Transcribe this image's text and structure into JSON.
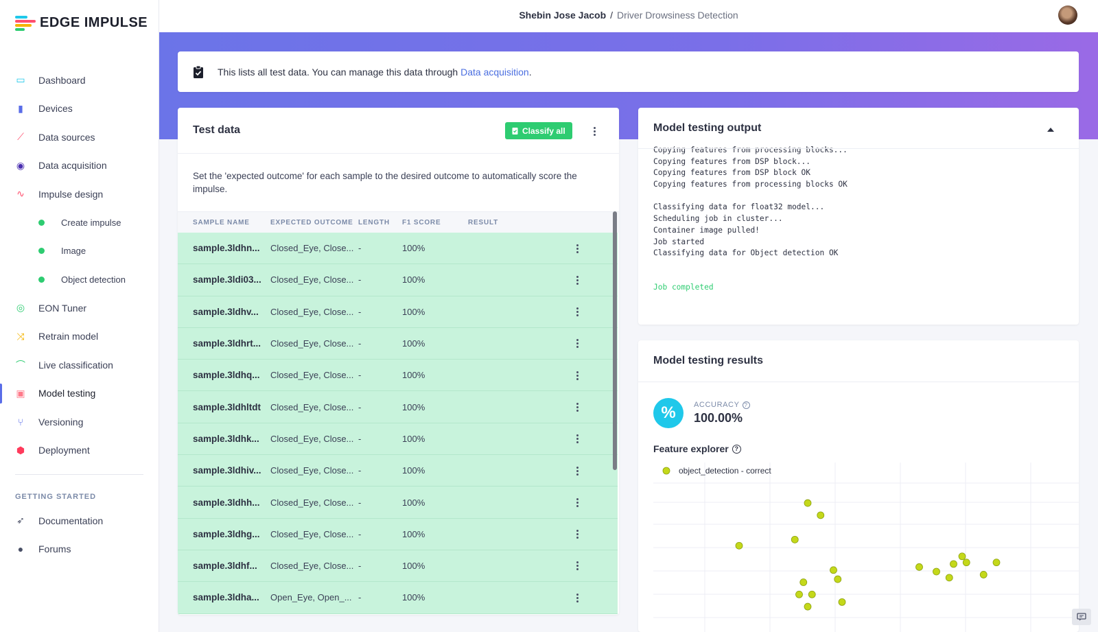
{
  "app": {
    "logo_text": "EDGE IMPULSE"
  },
  "breadcrumb": {
    "user": "Shebin Jose Jacob",
    "separator": "/",
    "project": "Driver Drowsiness Detection"
  },
  "sidebar": {
    "items": [
      {
        "label": "Dashboard",
        "icon": "monitor-icon",
        "color": "#1fc8ea"
      },
      {
        "label": "Devices",
        "icon": "chip-icon",
        "color": "#5a6de8"
      },
      {
        "label": "Data sources",
        "icon": "wand-icon",
        "color": "#ff4f6e"
      },
      {
        "label": "Data acquisition",
        "icon": "database-icon",
        "color": "#4a2fb0"
      },
      {
        "label": "Impulse design",
        "icon": "pulse-icon",
        "color": "#ff4f6e"
      },
      {
        "label": "Create impulse",
        "sub": true
      },
      {
        "label": "Image",
        "sub": true
      },
      {
        "label": "Object detection",
        "sub": true
      },
      {
        "label": "EON Tuner",
        "icon": "compass-icon",
        "color": "#2ecc71"
      },
      {
        "label": "Retrain model",
        "icon": "shuffle-icon",
        "color": "#f5b400"
      },
      {
        "label": "Live classification",
        "icon": "curve-icon",
        "color": "#2ecc71"
      },
      {
        "label": "Model testing",
        "icon": "clipboard-icon",
        "color": "#ff7a8a",
        "active": true
      },
      {
        "label": "Versioning",
        "icon": "branch-icon",
        "color": "#5a6de8"
      },
      {
        "label": "Deployment",
        "icon": "box-icon",
        "color": "#ff3b5c"
      }
    ],
    "section_label": "GETTING STARTED",
    "section_items": [
      {
        "label": "Documentation",
        "icon": "rocket-icon"
      },
      {
        "label": "Forums",
        "icon": "chat-icon"
      }
    ]
  },
  "info": {
    "text": "This lists all test data. You can manage this data through ",
    "link": "Data acquisition",
    "suffix": "."
  },
  "test_data": {
    "title": "Test data",
    "classify_label": "Classify all",
    "description": "Set the 'expected outcome' for each sample to the desired outcome to automatically score the impulse.",
    "columns": [
      "SAMPLE NAME",
      "EXPECTED OUTCOME",
      "LENGTH",
      "F1 SCORE",
      "RESULT"
    ],
    "rows": [
      [
        "sample.3ldhn...",
        "Closed_Eye, Close...",
        "-",
        "100%",
        ""
      ],
      [
        "sample.3ldi03...",
        "Closed_Eye, Close...",
        "-",
        "100%",
        ""
      ],
      [
        "sample.3ldhv...",
        "Closed_Eye, Close...",
        "-",
        "100%",
        ""
      ],
      [
        "sample.3ldhrt...",
        "Closed_Eye, Close...",
        "-",
        "100%",
        ""
      ],
      [
        "sample.3ldhq...",
        "Closed_Eye, Close...",
        "-",
        "100%",
        ""
      ],
      [
        "sample.3ldhltdt",
        "Closed_Eye, Close...",
        "-",
        "100%",
        ""
      ],
      [
        "sample.3ldhk...",
        "Closed_Eye, Close...",
        "-",
        "100%",
        ""
      ],
      [
        "sample.3ldhiv...",
        "Closed_Eye, Close...",
        "-",
        "100%",
        ""
      ],
      [
        "sample.3ldhh...",
        "Closed_Eye, Close...",
        "-",
        "100%",
        ""
      ],
      [
        "sample.3ldhg...",
        "Closed_Eye, Close...",
        "-",
        "100%",
        ""
      ],
      [
        "sample.3ldhf...",
        "Closed_Eye, Close...",
        "-",
        "100%",
        ""
      ],
      [
        "sample.3ldha...",
        "Open_Eye, Open_...",
        "-",
        "100%",
        ""
      ]
    ]
  },
  "output": {
    "title": "Model testing output",
    "lines": [
      "Copying features from processing blocks...",
      "Copying features from DSP block...",
      "Copying features from DSP block OK",
      "Copying features from processing blocks OK",
      "",
      "Classifying data for float32 model...",
      "Scheduling job in cluster...",
      "Container image pulled!",
      "Job started",
      "Classifying data for Object detection OK",
      "",
      ""
    ],
    "completed": "Job completed"
  },
  "results": {
    "title": "Model testing results",
    "accuracy_label": "ACCURACY",
    "accuracy_value": "100.00%",
    "percent_symbol": "%",
    "feature_explorer": "Feature explorer",
    "legend": "object_detection - correct",
    "point_color": "#c4d81a"
  },
  "chart_data": {
    "type": "scatter",
    "title": "",
    "xlabel": "",
    "ylabel": "",
    "grid": true,
    "legend_position": "top-left",
    "series": [
      {
        "name": "object_detection - correct",
        "color": "#c4d81a",
        "points": [
          [
            0.2,
            0.58
          ],
          [
            0.36,
            0.86
          ],
          [
            0.39,
            0.78
          ],
          [
            0.33,
            0.62
          ],
          [
            0.42,
            0.42
          ],
          [
            0.43,
            0.36
          ],
          [
            0.35,
            0.34
          ],
          [
            0.34,
            0.26
          ],
          [
            0.37,
            0.26
          ],
          [
            0.36,
            0.18
          ],
          [
            0.44,
            0.21
          ],
          [
            0.62,
            0.44
          ],
          [
            0.66,
            0.41
          ],
          [
            0.69,
            0.37
          ],
          [
            0.7,
            0.46
          ],
          [
            0.72,
            0.51
          ],
          [
            0.73,
            0.47
          ],
          [
            0.77,
            0.39
          ],
          [
            0.8,
            0.47
          ]
        ]
      }
    ]
  }
}
